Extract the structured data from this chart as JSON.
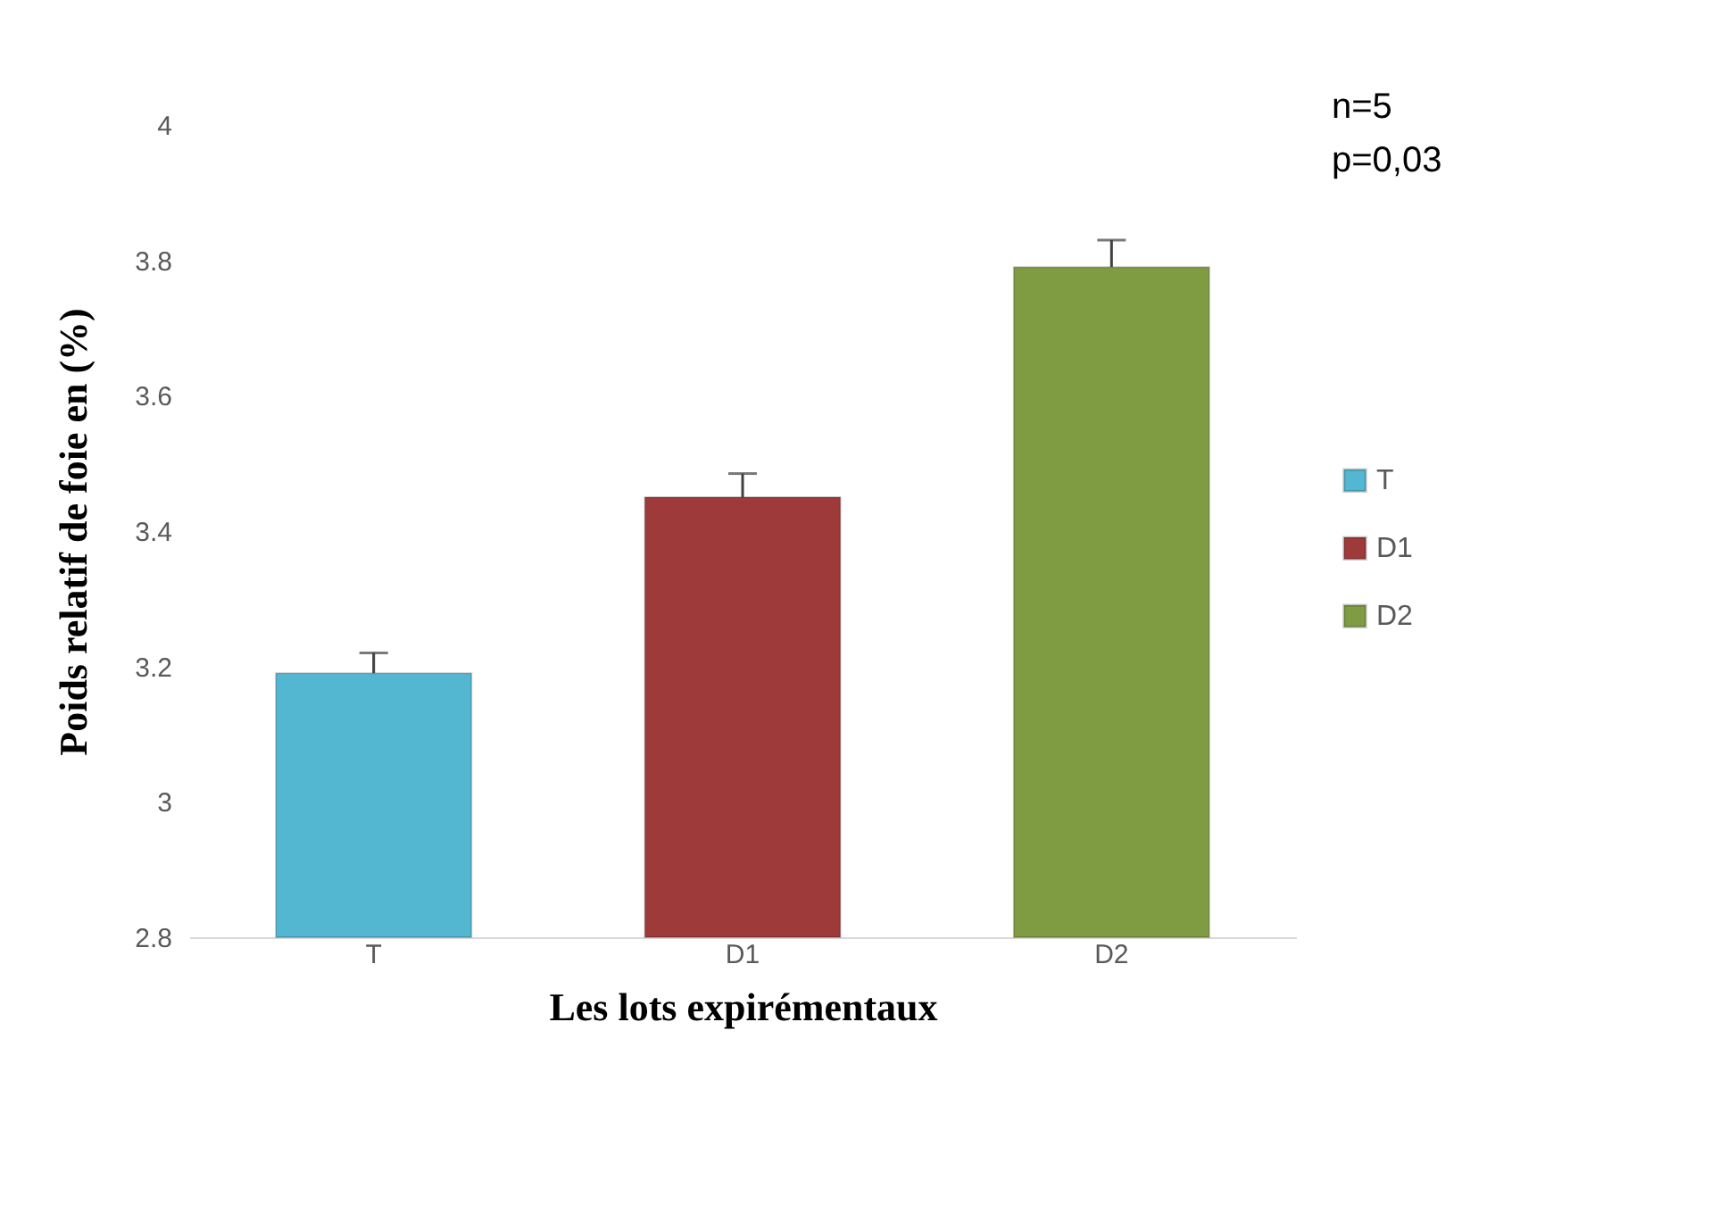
{
  "chart_data": {
    "type": "bar",
    "xlabel": "Les lots expirémentaux",
    "ylabel": "Poids  relatif de foie en (%)",
    "categories": [
      "T",
      "D1",
      "D2"
    ],
    "series": [
      {
        "name": "T",
        "color": "#53b7d2",
        "values": [
          3.19,
          null,
          null
        ],
        "errors": [
          [
            3.19,
            3.22
          ],
          null,
          null
        ]
      },
      {
        "name": "D1",
        "color": "#9e3b3a",
        "values": [
          null,
          3.45,
          null
        ],
        "errors": [
          null,
          [
            3.45,
            3.485
          ],
          null
        ]
      },
      {
        "name": "D2",
        "color": "#809c43",
        "values": [
          null,
          null,
          3.79
        ],
        "errors": [
          null,
          null,
          [
            3.79,
            3.83
          ]
        ]
      }
    ],
    "ylim": [
      2.8,
      4
    ],
    "yticks": [
      2.8,
      3,
      3.2,
      3.4,
      3.6,
      3.8,
      4
    ],
    "grid": false,
    "legend": "right",
    "annotations": [
      "n=5",
      "p=0,03"
    ]
  }
}
